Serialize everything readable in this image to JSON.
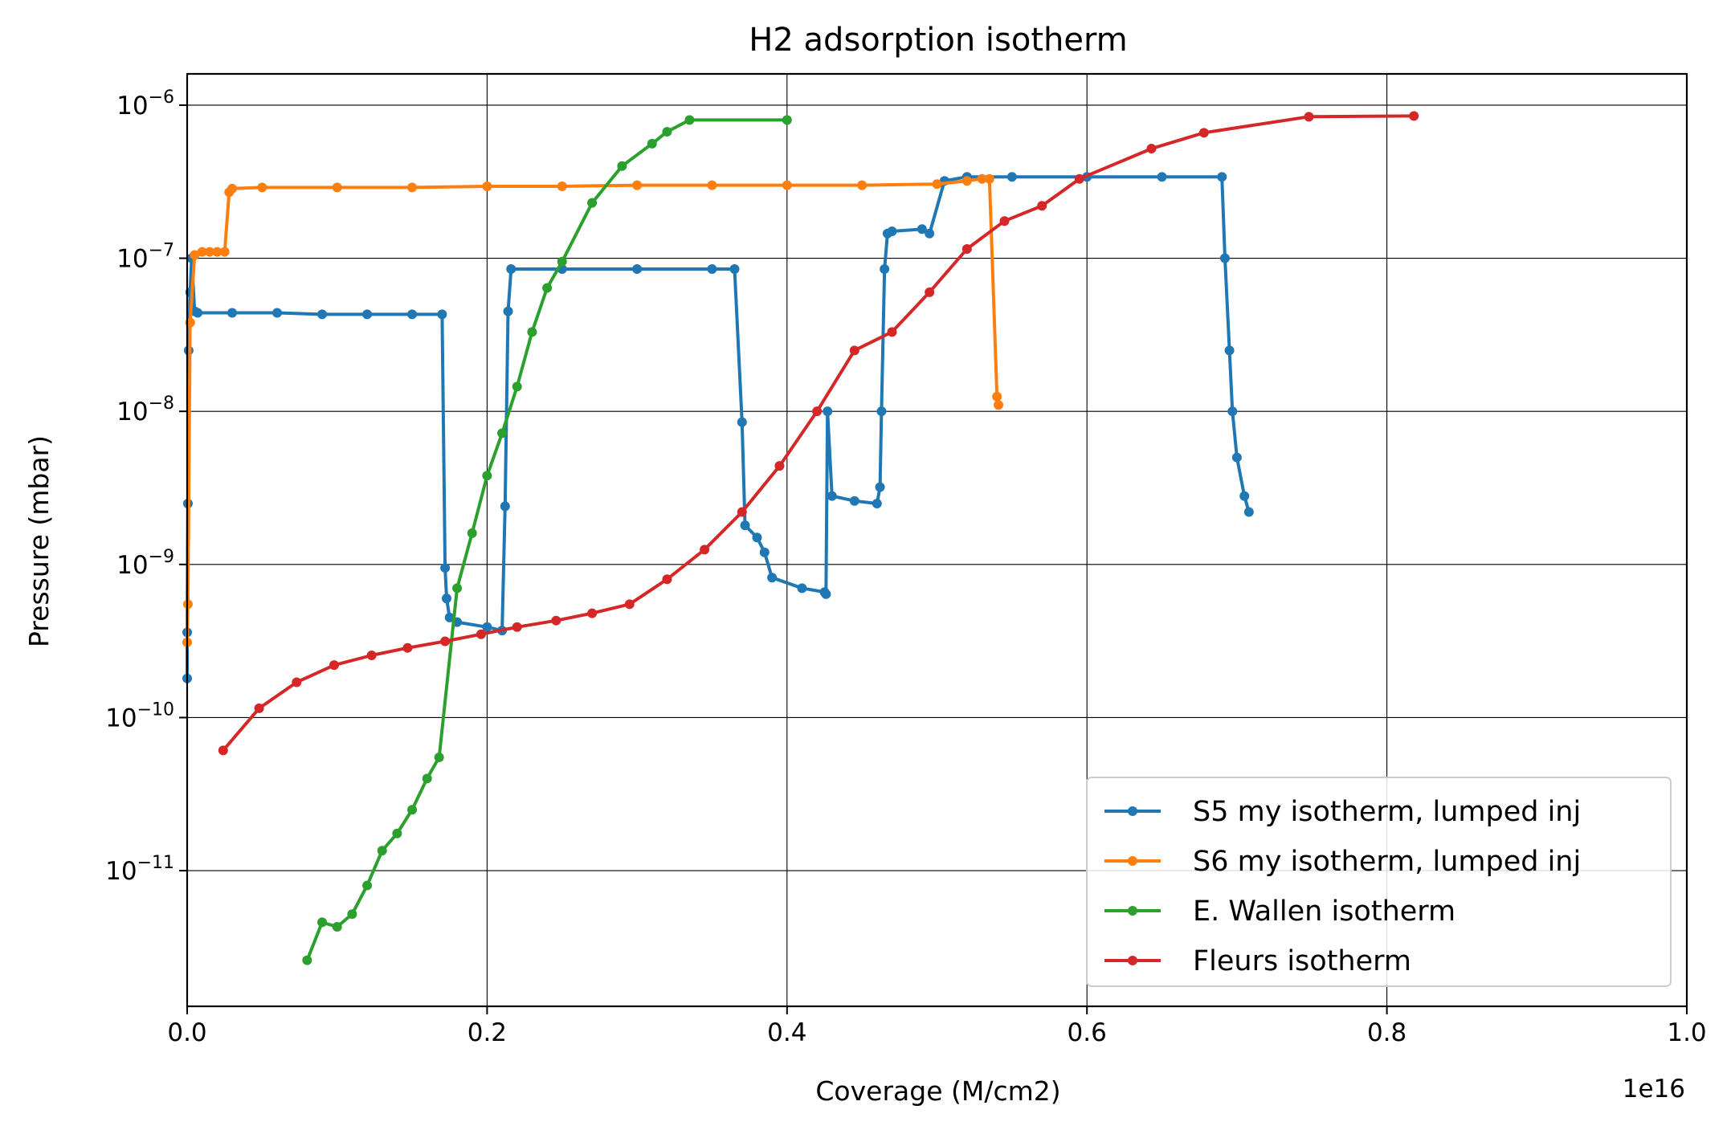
{
  "chart_data": {
    "type": "line",
    "title": "H2 adsorption isotherm",
    "xlabel": "Coverage (M/cm2)",
    "ylabel": "Pressure (mbar)",
    "x_offset_label": "1e16",
    "x_scale": "linear",
    "y_scale": "log",
    "xlim": [
      0,
      1e+16
    ],
    "ylim": [
      1.3e-12,
      1.6e-06
    ],
    "grid": true,
    "legend_position": "lower right",
    "x_ticks": [
      {
        "value": 0,
        "label": "0.0"
      },
      {
        "value": 2000000000000000.0,
        "label": "0.2"
      },
      {
        "value": 4000000000000000.0,
        "label": "0.4"
      },
      {
        "value": 6000000000000000.0,
        "label": "0.6"
      },
      {
        "value": 8000000000000000.0,
        "label": "0.8"
      },
      {
        "value": 1e+16,
        "label": "1.0"
      }
    ],
    "y_ticks": [
      {
        "value": 1e-11,
        "base": "10",
        "exp": "−11"
      },
      {
        "value": 1e-10,
        "base": "10",
        "exp": "−10"
      },
      {
        "value": 1e-09,
        "base": "10",
        "exp": "−9"
      },
      {
        "value": 1e-08,
        "base": "10",
        "exp": "−8"
      },
      {
        "value": 1e-07,
        "base": "10",
        "exp": "−7"
      },
      {
        "value": 1e-06,
        "base": "10",
        "exp": "−6"
      }
    ],
    "series": [
      {
        "name": "S5 my isotherm, lumped inj",
        "color": "#1f77b4",
        "x": [
          0,
          0,
          5000000000000.0,
          10000000000000.0,
          20000000000000.0,
          30000000000000.0,
          50000000000000.0,
          70000000000000.0,
          300000000000000.0,
          600000000000000.0,
          900000000000000.0,
          1200000000000000.0,
          1500000000000000.0,
          1700000000000000.0,
          1720000000000000.0,
          1730000000000000.0,
          1750000000000000.0,
          1800000000000000.0,
          2000000000000000.0,
          2100000000000000.0,
          2120000000000000.0,
          2140000000000000.0,
          2160000000000000.0,
          2500000000000000.0,
          3000000000000000.0,
          3500000000000000.0,
          3650000000000000.0,
          3700000000000000.0,
          3720000000000000.0,
          3800000000000000.0,
          3850000000000000.0,
          3900000000000000.0,
          4100000000000000.0,
          4250000000000000.0,
          4260000000000000.0,
          4270000000000000.0,
          4300000000000000.0,
          4450000000000000.0,
          4600000000000000.0,
          4620000000000000.0,
          4630000000000000.0,
          4650000000000000.0,
          4670000000000000.0,
          4700000000000000.0,
          4900000000000000.0,
          4950000000000000.0,
          5050000000000000.0,
          5200000000000000.0,
          5500000000000000.0,
          6000000000000000.0,
          6500000000000000.0,
          6900000000000000.0,
          6920000000000000.0,
          6950000000000000.0,
          6970000000000000.0,
          7000000000000000.0,
          7050000000000000.0,
          7080000000000000.0
        ],
        "y": [
          1.8e-10,
          3.6e-10,
          2.5e-09,
          2.5e-08,
          6e-08,
          1e-07,
          4.5e-08,
          4.4e-08,
          4.4e-08,
          4.4e-08,
          4.3e-08,
          4.3e-08,
          4.3e-08,
          4.3e-08,
          9.5e-10,
          6e-10,
          4.5e-10,
          4.2e-10,
          3.9e-10,
          3.7e-10,
          2.4e-09,
          4.5e-08,
          8.5e-08,
          8.5e-08,
          8.5e-08,
          8.5e-08,
          8.5e-08,
          8.5e-09,
          1.8e-09,
          1.5e-09,
          1.2e-09,
          8.2e-10,
          7e-10,
          6.6e-10,
          6.4e-10,
          1e-08,
          2.8e-09,
          2.6e-09,
          2.5e-09,
          3.2e-09,
          1e-08,
          8.5e-08,
          1.45e-07,
          1.5e-07,
          1.55e-07,
          1.45e-07,
          3.2e-07,
          3.4e-07,
          3.4e-07,
          3.4e-07,
          3.4e-07,
          3.4e-07,
          1e-07,
          2.5e-08,
          1e-08,
          5e-09,
          2.8e-09,
          2.2e-09
        ]
      },
      {
        "name": "S6 my isotherm, lumped inj",
        "color": "#ff7f0e",
        "x": [
          0,
          5000000000000.0,
          20000000000000.0,
          50000000000000.0,
          100000000000000.0,
          150000000000000.0,
          200000000000000.0,
          250000000000000.0,
          280000000000000.0,
          300000000000000.0,
          500000000000000.0,
          1000000000000000.0,
          1500000000000000.0,
          2000000000000000.0,
          2500000000000000.0,
          3000000000000000.0,
          3500000000000000.0,
          4000000000000000.0,
          4500000000000000.0,
          5000000000000000.0,
          5200000000000000.0,
          5300000000000000.0,
          5350000000000000.0,
          5400000000000000.0,
          5410000000000000.0
        ],
        "y": [
          3.1e-10,
          5.5e-10,
          3.8e-08,
          1.05e-07,
          1.1e-07,
          1.1e-07,
          1.1e-07,
          1.1e-07,
          2.7e-07,
          2.85e-07,
          2.9e-07,
          2.9e-07,
          2.9e-07,
          2.95e-07,
          2.95e-07,
          3e-07,
          3e-07,
          3e-07,
          3e-07,
          3.05e-07,
          3.2e-07,
          3.3e-07,
          3.3e-07,
          1.25e-08,
          1.1e-08
        ]
      },
      {
        "name": "E. Wallen isotherm",
        "color": "#2ca02c",
        "x": [
          800000000000000.0,
          900000000000000.0,
          1000000000000000.0,
          1100000000000000.0,
          1200000000000000.0,
          1300000000000000.0,
          1400000000000000.0,
          1500000000000000.0,
          1600000000000000.0,
          1680000000000000.0,
          1800000000000000.0,
          1900000000000000.0,
          2000000000000000.0,
          2100000000000000.0,
          2200000000000000.0,
          2300000000000000.0,
          2400000000000000.0,
          2500000000000000.0,
          2700000000000000.0,
          2900000000000000.0,
          3100000000000000.0,
          3200000000000000.0,
          3350000000000000.0,
          4000000000000000.0
        ],
        "y": [
          2.6e-12,
          4.6e-12,
          4.3e-12,
          5.2e-12,
          8e-12,
          1.35e-11,
          1.75e-11,
          2.5e-11,
          4e-11,
          5.5e-11,
          7e-10,
          1.6e-09,
          3.8e-09,
          7.2e-09,
          1.45e-08,
          3.3e-08,
          6.4e-08,
          9.5e-08,
          2.3e-07,
          4e-07,
          5.6e-07,
          6.7e-07,
          8e-07,
          8e-07
        ]
      },
      {
        "name": "Fleurs isotherm",
        "color": "#d62728",
        "x": [
          240000000000000.0,
          480000000000000.0,
          730000000000000.0,
          980000000000000.0,
          1230000000000000.0,
          1470000000000000.0,
          1720000000000000.0,
          1960000000000000.0,
          2200000000000000.0,
          2460000000000000.0,
          2700000000000000.0,
          2950000000000000.0,
          3200000000000000.0,
          3450000000000000.0,
          3700000000000000.0,
          3950000000000000.0,
          4200000000000000.0,
          4450000000000000.0,
          4700000000000000.0,
          4950000000000000.0,
          5200000000000000.0,
          5450000000000000.0,
          5700000000000000.0,
          5950000000000000.0,
          6430000000000000.0,
          6780000000000000.0,
          7480000000000000.0,
          8180000000000000.0
        ],
        "y": [
          6.1e-11,
          1.15e-10,
          1.7e-10,
          2.2e-10,
          2.55e-10,
          2.85e-10,
          3.15e-10,
          3.5e-10,
          3.9e-10,
          4.3e-10,
          4.8e-10,
          5.5e-10,
          8e-10,
          1.25e-09,
          2.2e-09,
          4.4e-09,
          1e-08,
          2.5e-08,
          3.3e-08,
          6e-08,
          1.15e-07,
          1.75e-07,
          2.2e-07,
          3.3e-07,
          5.2e-07,
          6.6e-07,
          8.4e-07,
          8.5e-07
        ]
      }
    ]
  }
}
